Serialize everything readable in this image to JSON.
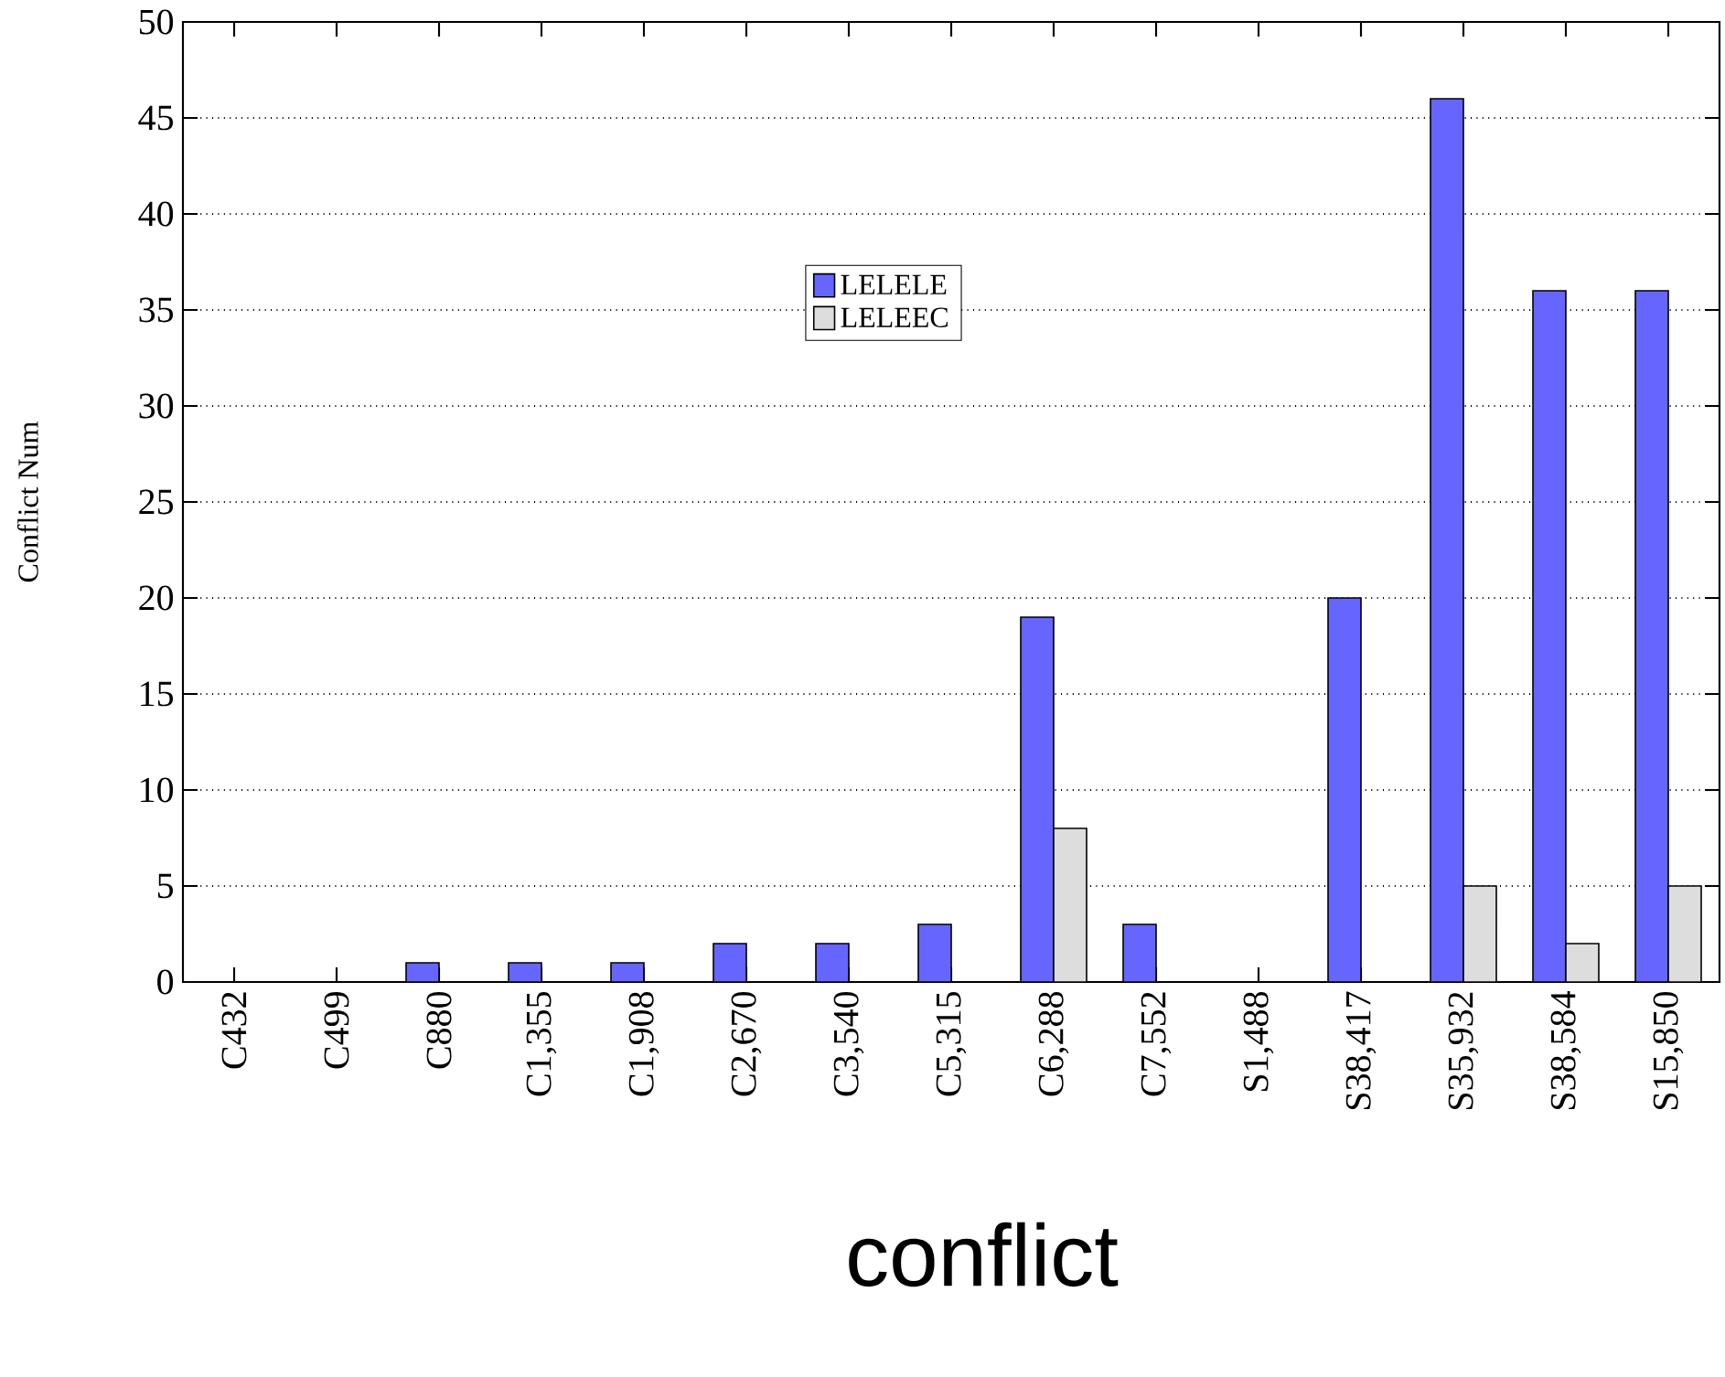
{
  "chart_data": {
    "type": "bar",
    "xlabel": "conflict",
    "ylabel": "Conflict Num",
    "categories": [
      "C432",
      "C499",
      "C880",
      "C1,355",
      "C1,908",
      "C2,670",
      "C3,540",
      "C5,315",
      "C6,288",
      "C7,552",
      "S1,488",
      "S38,417",
      "S35,932",
      "S38,584",
      "S15,850"
    ],
    "series": [
      {
        "name": "LELELE",
        "color": "#6666ff",
        "values": [
          0,
          0,
          1,
          1,
          1,
          2,
          2,
          3,
          19,
          3,
          0,
          20,
          46,
          36,
          36
        ]
      },
      {
        "name": "LELEEC",
        "color": "#dddddd",
        "values": [
          0,
          0,
          0,
          0,
          0,
          0,
          0,
          0,
          8,
          0,
          0,
          0,
          5,
          2,
          5
        ]
      }
    ],
    "ylim": [
      0,
      50
    ],
    "yticks": [
      0,
      5,
      10,
      15,
      20,
      25,
      30,
      35,
      40,
      45,
      50
    ],
    "grid": "y",
    "legend": "top"
  }
}
